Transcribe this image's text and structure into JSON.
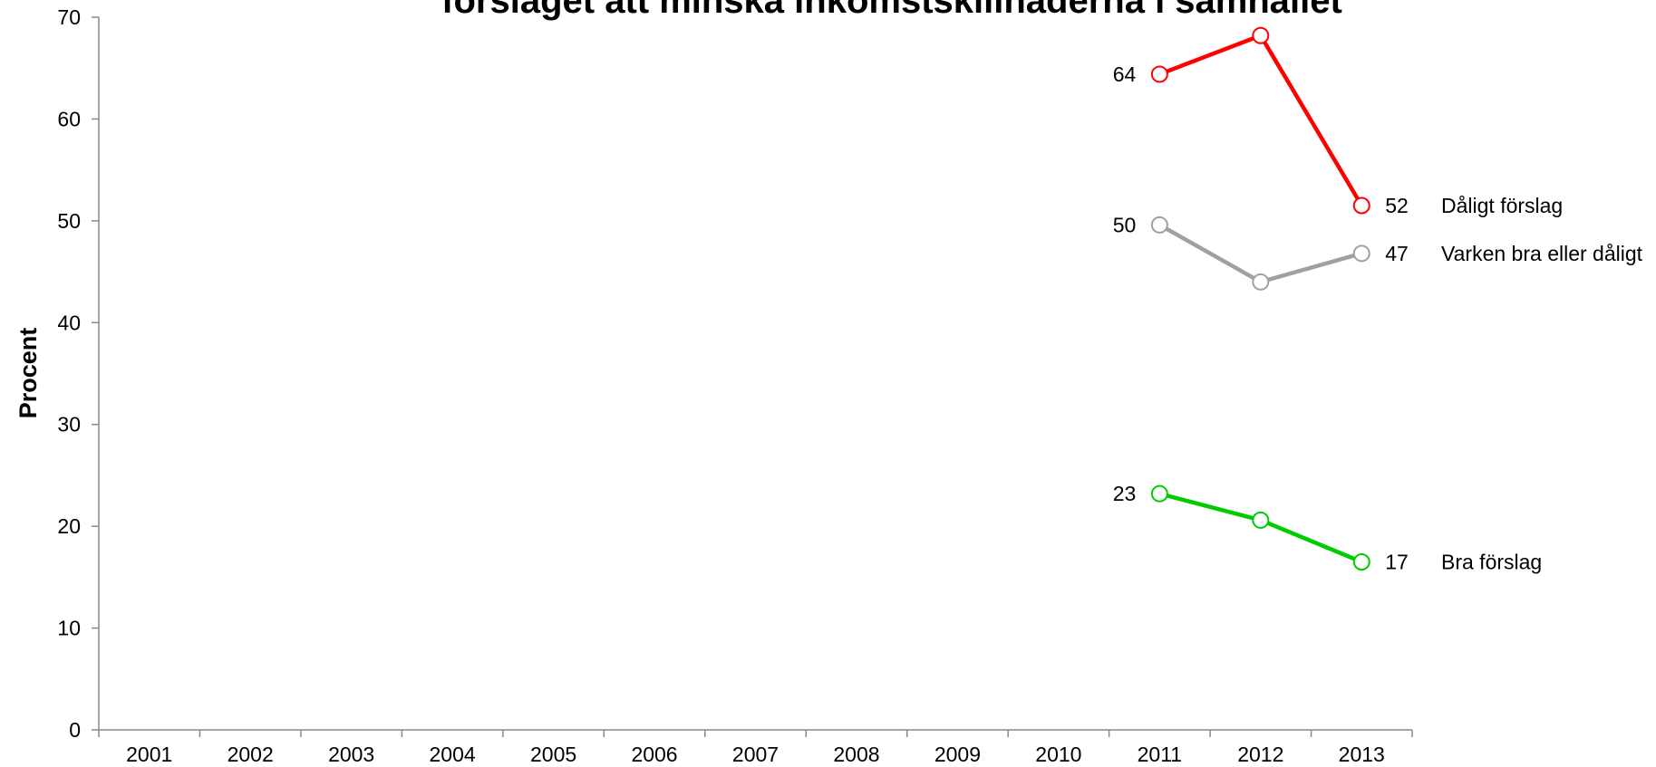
{
  "chart_data": {
    "type": "line",
    "title": "förslaget att minska inkomstskillnaderna i samhället",
    "y_label": "Procent",
    "categories": [
      "2001",
      "2002",
      "2003",
      "2004",
      "2005",
      "2006",
      "2007",
      "2008",
      "2009",
      "2010",
      "2011",
      "2012",
      "2013"
    ],
    "series": [
      {
        "name": "Dåligt förslag",
        "color": "#ff0000",
        "values": [
          null,
          null,
          null,
          null,
          null,
          null,
          null,
          null,
          null,
          null,
          64.4,
          68.2,
          51.5
        ],
        "value_labels": [
          null,
          null,
          null,
          null,
          null,
          null,
          null,
          null,
          null,
          null,
          "64",
          null,
          "52"
        ]
      },
      {
        "name": "Varken bra eller dåligt",
        "color": "#a0a0a0",
        "values": [
          null,
          null,
          null,
          null,
          null,
          null,
          null,
          null,
          null,
          null,
          49.6,
          44,
          46.8
        ],
        "value_labels": [
          null,
          null,
          null,
          null,
          null,
          null,
          null,
          null,
          null,
          null,
          "50",
          null,
          "47"
        ]
      },
      {
        "name": "Bra förslag",
        "color": "#00cc00",
        "values": [
          null,
          null,
          null,
          null,
          null,
          null,
          null,
          null,
          null,
          null,
          23.2,
          20.6,
          16.5
        ],
        "value_labels": [
          null,
          null,
          null,
          null,
          null,
          null,
          null,
          null,
          null,
          null,
          "23",
          null,
          "17"
        ]
      }
    ],
    "ylim": [
      0,
      70
    ],
    "yticks": [
      0,
      10,
      20,
      30,
      40,
      50,
      60,
      70
    ]
  }
}
